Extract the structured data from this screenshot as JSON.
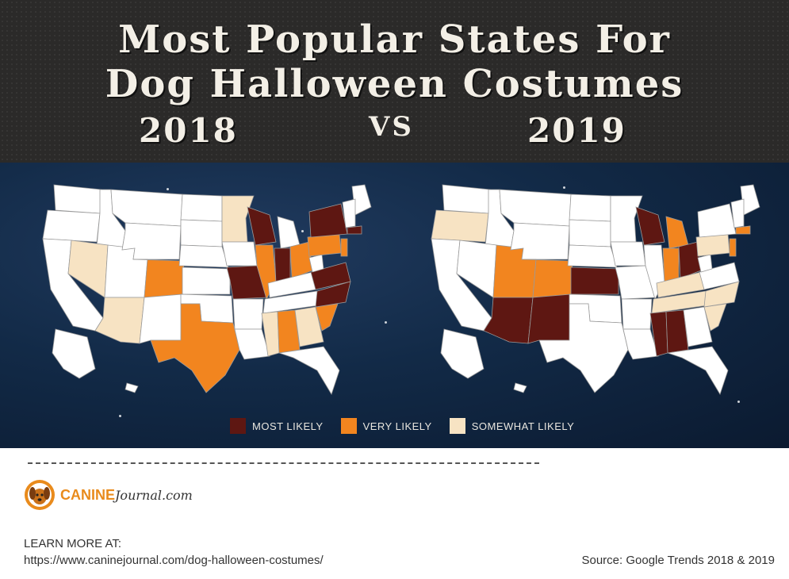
{
  "header": {
    "title_line1": "Most Popular States For",
    "title_line2": "Dog Halloween Costumes",
    "year_left": "2018",
    "vs": "VS",
    "year_right": "2019"
  },
  "legend": {
    "items": [
      {
        "label": "MOST LIKELY",
        "color": "#5e1712"
      },
      {
        "label": "VERY LIKELY",
        "color": "#f2851f"
      },
      {
        "label": "SOMEWHAT LIKELY",
        "color": "#f7e3c3"
      }
    ]
  },
  "colors": {
    "base_state": "#ffffff",
    "most_likely": "#5e1712",
    "very_likely": "#f2851f",
    "somewhat_likely": "#f7e3c3"
  },
  "maps": [
    {
      "year": "2018",
      "most_likely": [
        "Wisconsin",
        "Missouri",
        "Indiana",
        "New York",
        "Massachusetts",
        "Virginia",
        "North Carolina"
      ],
      "very_likely": [
        "Colorado",
        "Texas",
        "Illinois",
        "Ohio",
        "Pennsylvania",
        "Alabama",
        "South Carolina",
        "New Jersey"
      ],
      "somewhat_likely": [
        "Arizona",
        "Nevada",
        "Minnesota",
        "Georgia",
        "Mississippi"
      ]
    },
    {
      "year": "2019",
      "most_likely": [
        "Arizona",
        "New Mexico",
        "Kansas",
        "Wisconsin",
        "Ohio",
        "Mississippi",
        "Alabama"
      ],
      "very_likely": [
        "Utah",
        "Colorado",
        "Michigan",
        "Indiana",
        "New Jersey",
        "Massachusetts"
      ],
      "somewhat_likely": [
        "Oregon",
        "Pennsylvania",
        "Kentucky",
        "Tennessee",
        "North Carolina",
        "South Carolina"
      ]
    }
  ],
  "footer": {
    "brand_canine": "CANINE",
    "brand_journal": "Journal.com",
    "learn_more": "LEARN MORE AT:",
    "url": "https://www.caninejournal.com/dog-halloween-costumes/",
    "source": "Source: Google Trends 2018 & 2019"
  }
}
